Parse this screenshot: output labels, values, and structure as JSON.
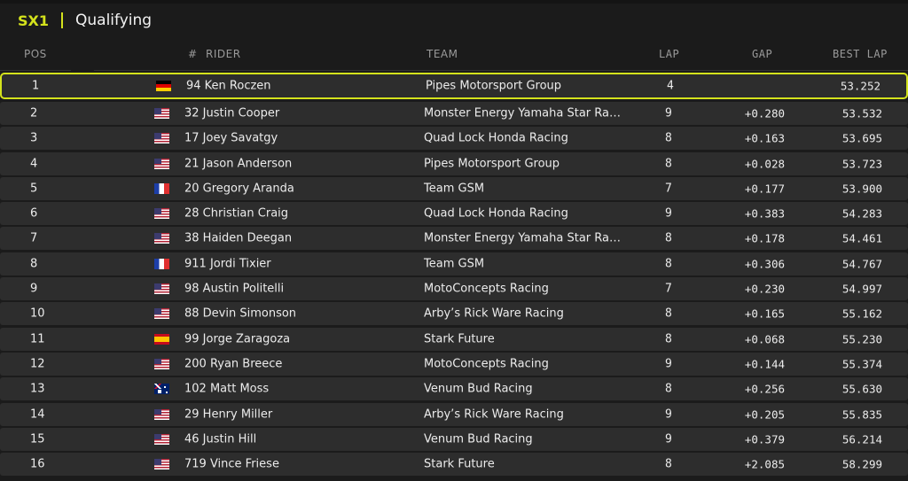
{
  "header": {
    "series": "SX1",
    "session": "Qualifying"
  },
  "columns": {
    "pos": "POS",
    "num": "#",
    "rider": "RIDER",
    "team": "TEAM",
    "lap": "LAP",
    "gap": "GAP",
    "best": "BEST LAP"
  },
  "accent": "#d4e21c",
  "rows": [
    {
      "pos": "1",
      "flag": "de",
      "rider": "94 Ken Roczen",
      "team": "Pipes Motorsport Group",
      "lap": "4",
      "gap": "",
      "best": "53.252",
      "highlight": true
    },
    {
      "pos": "2",
      "flag": "us",
      "rider": "32 Justin Cooper",
      "team": "Monster Energy Yamaha Star Ra…",
      "lap": "9",
      "gap": "+0.280",
      "best": "53.532"
    },
    {
      "pos": "3",
      "flag": "us",
      "rider": "17 Joey Savatgy",
      "team": "Quad Lock Honda Racing",
      "lap": "8",
      "gap": "+0.163",
      "best": "53.695"
    },
    {
      "pos": "4",
      "flag": "us",
      "rider": "21 Jason Anderson",
      "team": "Pipes Motorsport Group",
      "lap": "8",
      "gap": "+0.028",
      "best": "53.723"
    },
    {
      "pos": "5",
      "flag": "fr",
      "rider": "20 Gregory Aranda",
      "team": "Team GSM",
      "lap": "7",
      "gap": "+0.177",
      "best": "53.900"
    },
    {
      "pos": "6",
      "flag": "us",
      "rider": "28 Christian Craig",
      "team": "Quad Lock Honda Racing",
      "lap": "9",
      "gap": "+0.383",
      "best": "54.283"
    },
    {
      "pos": "7",
      "flag": "us",
      "rider": "38 Haiden Deegan",
      "team": "Monster Energy Yamaha Star Ra…",
      "lap": "8",
      "gap": "+0.178",
      "best": "54.461"
    },
    {
      "pos": "8",
      "flag": "fr",
      "rider": "911 Jordi Tixier",
      "team": "Team GSM",
      "lap": "8",
      "gap": "+0.306",
      "best": "54.767"
    },
    {
      "pos": "9",
      "flag": "us",
      "rider": "98 Austin Politelli",
      "team": "MotoConcepts Racing",
      "lap": "7",
      "gap": "+0.230",
      "best": "54.997"
    },
    {
      "pos": "10",
      "flag": "us",
      "rider": "88 Devin Simonson",
      "team": "Arby’s Rick Ware Racing",
      "lap": "8",
      "gap": "+0.165",
      "best": "55.162"
    },
    {
      "pos": "11",
      "flag": "es",
      "rider": "99 Jorge Zaragoza",
      "team": "Stark Future",
      "lap": "8",
      "gap": "+0.068",
      "best": "55.230"
    },
    {
      "pos": "12",
      "flag": "us",
      "rider": "200 Ryan Breece",
      "team": "MotoConcepts Racing",
      "lap": "9",
      "gap": "+0.144",
      "best": "55.374"
    },
    {
      "pos": "13",
      "flag": "au",
      "rider": "102 Matt Moss",
      "team": "Venum Bud Racing",
      "lap": "8",
      "gap": "+0.256",
      "best": "55.630"
    },
    {
      "pos": "14",
      "flag": "us",
      "rider": "29 Henry Miller",
      "team": "Arby’s Rick Ware Racing",
      "lap": "9",
      "gap": "+0.205",
      "best": "55.835"
    },
    {
      "pos": "15",
      "flag": "us",
      "rider": "46 Justin Hill",
      "team": "Venum Bud Racing",
      "lap": "9",
      "gap": "+0.379",
      "best": "56.214"
    },
    {
      "pos": "16",
      "flag": "us",
      "rider": "719 Vince Friese",
      "team": "Stark Future",
      "lap": "8",
      "gap": "+2.085",
      "best": "58.299"
    }
  ]
}
